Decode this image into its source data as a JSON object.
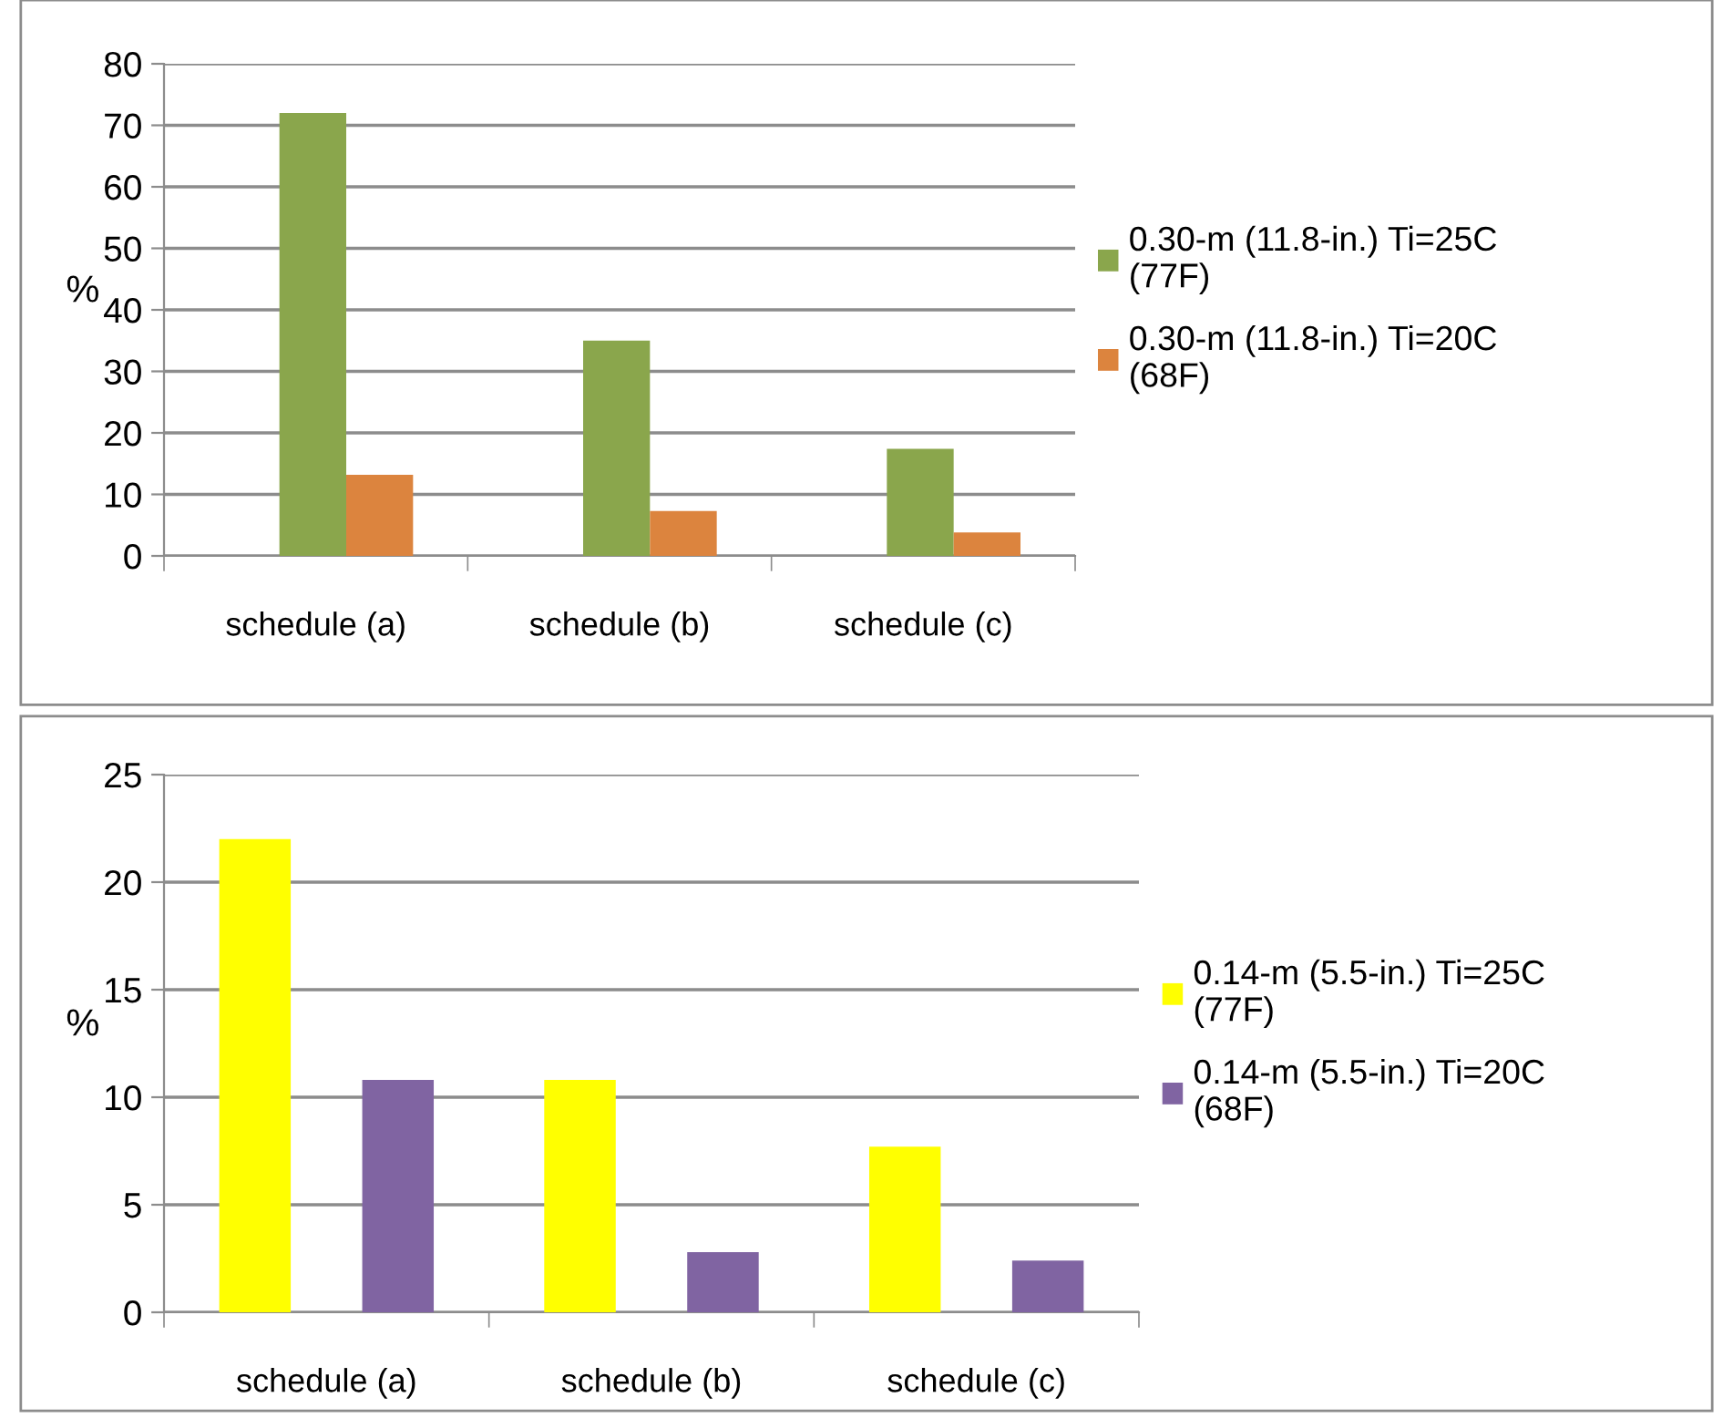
{
  "chart_data": [
    {
      "type": "bar",
      "categories": [
        "schedule (a)",
        "schedule (b)",
        "schedule (c)"
      ],
      "ylabel": "%",
      "ylim": [
        0,
        80
      ],
      "yticks": [
        0,
        10,
        20,
        30,
        40,
        50,
        60,
        70,
        80
      ],
      "grid": "y",
      "legend": "right",
      "series": [
        {
          "name": "0.30-m (11.8-in.) Ti=25C (77F)",
          "color": "#8aa64c",
          "values": [
            72,
            35,
            17.4
          ]
        },
        {
          "name": "0.30-m (11.8-in.) Ti=20C (68F)",
          "color": "#dc843e",
          "values": [
            13.2,
            7.3,
            3.8
          ]
        }
      ]
    },
    {
      "type": "bar",
      "categories": [
        "schedule (a)",
        "schedule (b)",
        "schedule (c)"
      ],
      "ylabel": "%",
      "ylim": [
        0,
        25
      ],
      "yticks": [
        0,
        5,
        10,
        15,
        20,
        25
      ],
      "grid": "y",
      "legend": "right",
      "series": [
        {
          "name": "0.14-m (5.5-in.) Ti=25C (77F)",
          "color": "#ffff00",
          "values": [
            22,
            10.8,
            7.7
          ]
        },
        {
          "name": "0.14-m (5.5-in.) Ti=20C (68F)",
          "color": "#8064a2",
          "values": [
            10.8,
            2.8,
            2.4
          ]
        }
      ]
    }
  ]
}
